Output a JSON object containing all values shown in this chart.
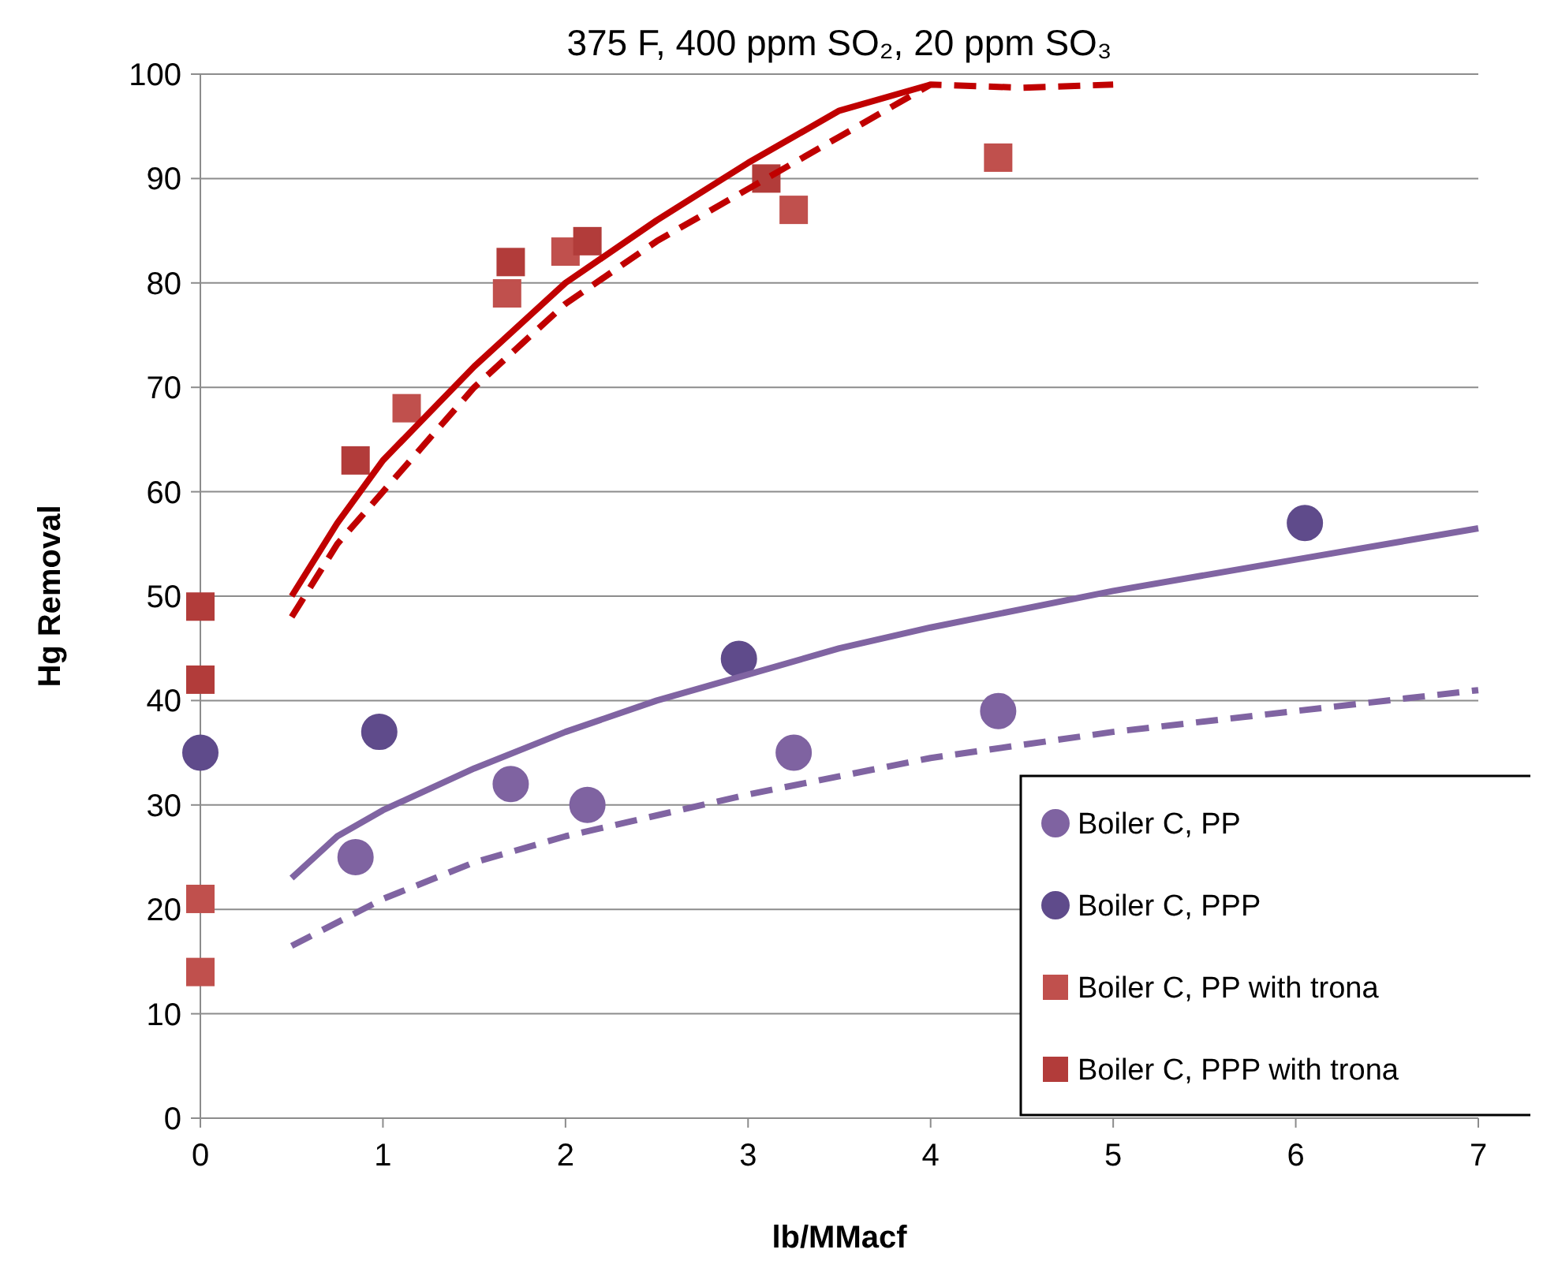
{
  "chart_data": {
    "type": "scatter",
    "title": "375 F, 400 ppm SO₂, 20 ppm SO₃",
    "xlabel": "lb/MMacf",
    "ylabel": "Hg Removal",
    "xlim": [
      0,
      7
    ],
    "xticks": [
      0,
      1,
      2,
      3,
      4,
      5,
      6,
      7
    ],
    "ylim": [
      0,
      100
    ],
    "yticks": [
      0,
      10,
      20,
      30,
      40,
      50,
      60,
      70,
      80,
      90,
      100
    ],
    "grid": "y",
    "legend": "bottom right",
    "series": [
      {
        "name": "Boiler C, PP",
        "marker": "circle",
        "color": "#7f63a1",
        "x": [
          0.85,
          1.7,
          2.12,
          3.25,
          4.37
        ],
        "values": [
          25,
          32,
          30,
          35,
          39
        ]
      },
      {
        "name": "Boiler C, PPP",
        "marker": "circle",
        "color": "#5f4b8b",
        "x": [
          0,
          0.98,
          2.95,
          6.05
        ],
        "values": [
          35,
          37,
          44,
          57
        ]
      },
      {
        "name": "Boiler C, PP with trona",
        "marker": "square",
        "color": "#c0504d",
        "x": [
          0,
          0,
          1.13,
          1.68,
          2.0,
          3.25,
          4.37
        ],
        "values": [
          21,
          14,
          68,
          79,
          83,
          87,
          92
        ]
      },
      {
        "name": "Boiler C, PPP with trona",
        "marker": "square",
        "color": "#b23c3a",
        "x": [
          0,
          0,
          0.85,
          1.7,
          2.12,
          3.1
        ],
        "values": [
          49,
          42,
          63,
          82,
          84,
          90
        ]
      },
      {
        "type": "line",
        "line_style": "solid",
        "color": "#c00000",
        "x": [
          0.5,
          0.75,
          1,
          1.5,
          2,
          2.5,
          3,
          3.5,
          4
        ],
        "values": [
          50,
          57,
          63,
          72,
          80,
          86,
          91.5,
          96.5,
          99
        ]
      },
      {
        "type": "line",
        "line_style": "dashed",
        "color": "#c00000",
        "x": [
          0.5,
          0.75,
          1,
          1.5,
          2,
          2.5,
          3,
          3.5,
          4,
          4.5,
          5
        ],
        "values": [
          48,
          55,
          60,
          70,
          78,
          84,
          89,
          94,
          99,
          98.7,
          99
        ]
      },
      {
        "type": "line",
        "line_style": "solid",
        "color": "#8064a2",
        "x": [
          0.5,
          0.75,
          1,
          1.5,
          2,
          2.5,
          3,
          3.5,
          4,
          5,
          6,
          7
        ],
        "values": [
          23,
          27,
          29.5,
          33.5,
          37,
          40,
          42.5,
          45,
          47,
          50.5,
          53.5,
          56.5
        ]
      },
      {
        "type": "line",
        "line_style": "dashed",
        "color": "#8064a2",
        "x": [
          0.5,
          1,
          1.5,
          2,
          3,
          4,
          5,
          6,
          7
        ],
        "values": [
          16.5,
          21,
          24.5,
          27,
          31,
          34.5,
          37,
          39,
          41
        ]
      }
    ]
  }
}
